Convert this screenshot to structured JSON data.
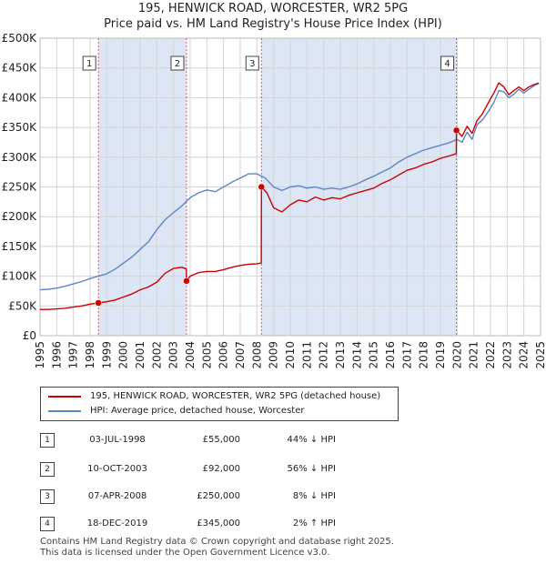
{
  "header": {
    "title_line1": "195, HENWICK ROAD, WORCESTER, WR2 5PG",
    "title_line2": "Price paid vs. HM Land Registry's House Price Index (HPI)"
  },
  "colors": {
    "property": "#cc0000",
    "hpi": "#5b87c5",
    "shade": "#dde6f5",
    "grid": "#d4d4d4",
    "marker_line": "#cc0000"
  },
  "chart_data": {
    "type": "line",
    "title": "195, HENWICK ROAD, WORCESTER, WR2 5PG — Price paid vs. HM Land Registry's House Price Index (HPI)",
    "xlabel": "",
    "ylabel": "",
    "xlim": [
      1995,
      2025
    ],
    "ylim": [
      0,
      500000
    ],
    "grid": true,
    "y_ticks": [
      0,
      50000,
      100000,
      150000,
      200000,
      250000,
      300000,
      350000,
      400000,
      450000,
      500000
    ],
    "y_tick_labels": [
      "£0",
      "£50K",
      "£100K",
      "£150K",
      "£200K",
      "£250K",
      "£300K",
      "£350K",
      "£400K",
      "£450K",
      "£500K"
    ],
    "x_ticks": [
      1995,
      1996,
      1997,
      1998,
      1999,
      2000,
      2001,
      2002,
      2003,
      2004,
      2005,
      2006,
      2007,
      2008,
      2009,
      2010,
      2011,
      2012,
      2013,
      2014,
      2015,
      2016,
      2017,
      2018,
      2019,
      2020,
      2021,
      2022,
      2023,
      2024,
      2025
    ],
    "x_tick_labels": [
      "1995",
      "1996",
      "1997",
      "1998",
      "1999",
      "2000",
      "2001",
      "2002",
      "2003",
      "2004",
      "2005",
      "2006",
      "2007",
      "2008",
      "2009",
      "2010",
      "2011",
      "2012",
      "2013",
      "2014",
      "2015",
      "2016",
      "2017",
      "2018",
      "2019",
      "2020",
      "2021",
      "2022",
      "2023",
      "2024",
      "2025"
    ],
    "shaded_spans": [
      [
        1998.5,
        2003.78
      ],
      [
        2008.27,
        2019.96
      ]
    ],
    "series": [
      {
        "name": "195, HENWICK ROAD, WORCESTER, WR2 5PG (detached house)",
        "x": [
          1995.0,
          1995.5,
          1996.0,
          1996.5,
          1997.0,
          1997.5,
          1998.0,
          1998.5,
          1999.0,
          1999.5,
          2000.0,
          2000.5,
          2001.0,
          2001.5,
          2002.0,
          2002.5,
          2003.0,
          2003.5,
          2003.77,
          2003.78,
          2004.0,
          2004.5,
          2005.0,
          2005.5,
          2006.0,
          2006.5,
          2007.0,
          2007.5,
          2008.0,
          2008.26,
          2008.27,
          2008.6,
          2009.0,
          2009.5,
          2010.0,
          2010.5,
          2011.0,
          2011.5,
          2012.0,
          2012.5,
          2013.0,
          2013.5,
          2014.0,
          2014.5,
          2015.0,
          2015.5,
          2016.0,
          2016.5,
          2017.0,
          2017.5,
          2018.0,
          2018.5,
          2019.0,
          2019.5,
          2019.95,
          2019.96,
          2020.3,
          2020.6,
          2020.9,
          2021.2,
          2021.5,
          2021.9,
          2022.2,
          2022.5,
          2022.8,
          2023.1,
          2023.4,
          2023.7,
          2024.0,
          2024.3,
          2024.6,
          2024.9
        ],
        "values": [
          44000,
          44000,
          45000,
          46000,
          48000,
          50000,
          53000,
          55000,
          57000,
          60000,
          65000,
          70000,
          77000,
          82000,
          90000,
          105000,
          113000,
          115000,
          112000,
          92000,
          100000,
          106000,
          108000,
          108000,
          111000,
          115000,
          118000,
          120000,
          121000,
          122000,
          250000,
          240000,
          215000,
          208000,
          220000,
          228000,
          225000,
          233000,
          228000,
          232000,
          230000,
          236000,
          240000,
          244000,
          248000,
          256000,
          262000,
          270000,
          278000,
          282000,
          288000,
          292000,
          298000,
          302000,
          306000,
          345000,
          335000,
          352000,
          340000,
          362000,
          372000,
          393000,
          408000,
          425000,
          418000,
          405000,
          412000,
          418000,
          412000,
          418000,
          422000,
          425000
        ]
      },
      {
        "name": "HPI: Average price, detached house, Worcester",
        "x": [
          1995.0,
          1995.5,
          1996.0,
          1996.5,
          1997.0,
          1997.5,
          1998.0,
          1998.5,
          1999.0,
          1999.5,
          2000.0,
          2000.5,
          2001.0,
          2001.5,
          2002.0,
          2002.5,
          2003.0,
          2003.5,
          2004.0,
          2004.5,
          2005.0,
          2005.5,
          2006.0,
          2006.5,
          2007.0,
          2007.5,
          2008.0,
          2008.5,
          2009.0,
          2009.5,
          2010.0,
          2010.5,
          2011.0,
          2011.5,
          2012.0,
          2012.5,
          2013.0,
          2013.5,
          2014.0,
          2014.5,
          2015.0,
          2015.5,
          2016.0,
          2016.5,
          2017.0,
          2017.5,
          2018.0,
          2018.5,
          2019.0,
          2019.5,
          2020.0,
          2020.3,
          2020.6,
          2020.9,
          2021.2,
          2021.5,
          2021.9,
          2022.2,
          2022.5,
          2022.8,
          2023.1,
          2023.4,
          2023.7,
          2024.0,
          2024.3,
          2024.6,
          2024.9
        ],
        "values": [
          77000,
          78000,
          80000,
          83000,
          87000,
          91000,
          96000,
          100000,
          104000,
          112000,
          122000,
          132000,
          145000,
          158000,
          178000,
          195000,
          207000,
          218000,
          232000,
          240000,
          245000,
          242000,
          250000,
          258000,
          265000,
          272000,
          272000,
          265000,
          250000,
          244000,
          250000,
          252000,
          248000,
          250000,
          246000,
          248000,
          246000,
          250000,
          255000,
          262000,
          268000,
          275000,
          282000,
          292000,
          300000,
          306000,
          312000,
          316000,
          320000,
          324000,
          330000,
          325000,
          342000,
          330000,
          355000,
          362000,
          378000,
          392000,
          412000,
          410000,
          400000,
          406000,
          414000,
          408000,
          414000,
          420000,
          424000
        ]
      }
    ],
    "sale_markers": [
      {
        "label": "1",
        "x": 1998.5,
        "y": 55000
      },
      {
        "label": "2",
        "x": 2003.78,
        "y": 92000
      },
      {
        "label": "3",
        "x": 2008.27,
        "y": 250000
      },
      {
        "label": "4",
        "x": 2019.96,
        "y": 345000
      }
    ]
  },
  "legend": {
    "property_label": "195, HENWICK ROAD, WORCESTER, WR2 5PG (detached house)",
    "hpi_label": "HPI: Average price, detached house, Worcester"
  },
  "sales": [
    {
      "num": "1",
      "date": "03-JUL-1998",
      "price": "£55,000",
      "hpi": "44% ↓ HPI"
    },
    {
      "num": "2",
      "date": "10-OCT-2003",
      "price": "£92,000",
      "hpi": "56% ↓ HPI"
    },
    {
      "num": "3",
      "date": "07-APR-2008",
      "price": "£250,000",
      "hpi": "8% ↓ HPI"
    },
    {
      "num": "4",
      "date": "18-DEC-2019",
      "price": "£345,000",
      "hpi": "2% ↑ HPI"
    }
  ],
  "footer": {
    "line1": "Contains HM Land Registry data © Crown copyright and database right 2025.",
    "line2": "This data is licensed under the Open Government Licence v3.0."
  }
}
